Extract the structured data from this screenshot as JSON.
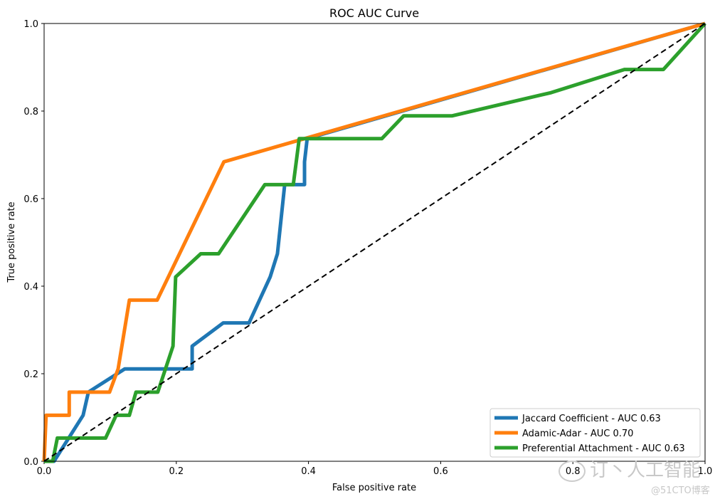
{
  "chart_data": {
    "type": "line",
    "title": "ROC AUC Curve",
    "xlabel": "False positive rate",
    "ylabel": "True positive rate",
    "xlim": [
      0,
      1
    ],
    "ylim": [
      0,
      1
    ],
    "xticks": [
      "0.0",
      "0.2",
      "0.4",
      "0.6",
      "0.8",
      "1.0"
    ],
    "yticks": [
      "0.0",
      "0.2",
      "0.4",
      "0.6",
      "0.8",
      "1.0"
    ],
    "grid": false,
    "legend_position": "bottom-right",
    "series": [
      {
        "name": "Jaccard Coefficient - AUC 0.63",
        "color": "#1f77b4",
        "x": [
          0,
          0.015,
          0.059,
          0.067,
          0.122,
          0.224,
          0.224,
          0.271,
          0.31,
          0.342,
          0.353,
          0.364,
          0.394,
          0.394,
          0.398,
          1
        ],
        "y": [
          0,
          0,
          0.105,
          0.158,
          0.211,
          0.211,
          0.263,
          0.316,
          0.316,
          0.421,
          0.474,
          0.632,
          0.632,
          0.684,
          0.737,
          1
        ]
      },
      {
        "name": "Adamic-Adar - AUC 0.70",
        "color": "#ff7f0e",
        "x": [
          0,
          0.003,
          0.038,
          0.038,
          0.099,
          0.112,
          0.129,
          0.171,
          0.272,
          1
        ],
        "y": [
          0,
          0.105,
          0.105,
          0.158,
          0.158,
          0.211,
          0.368,
          0.368,
          0.684,
          1
        ]
      },
      {
        "name": "Preferential Attachment - AUC 0.63",
        "color": "#2ca02c",
        "x": [
          0,
          0.013,
          0.02,
          0.093,
          0.109,
          0.129,
          0.139,
          0.172,
          0.195,
          0.199,
          0.237,
          0.264,
          0.334,
          0.377,
          0.386,
          0.511,
          0.544,
          0.617,
          0.767,
          0.878,
          0.937,
          1
        ],
        "y": [
          0,
          0,
          0.053,
          0.053,
          0.105,
          0.105,
          0.158,
          0.158,
          0.263,
          0.421,
          0.474,
          0.474,
          0.632,
          0.632,
          0.737,
          0.737,
          0.789,
          0.789,
          0.842,
          0.895,
          0.895,
          1
        ]
      }
    ],
    "reference_line": {
      "x": [
        0,
        1
      ],
      "y": [
        0,
        1
      ],
      "style": "dashed",
      "color": "#000000"
    }
  },
  "watermark": {
    "line1": "订丶人工智能",
    "line2": "@51CTO博客"
  }
}
